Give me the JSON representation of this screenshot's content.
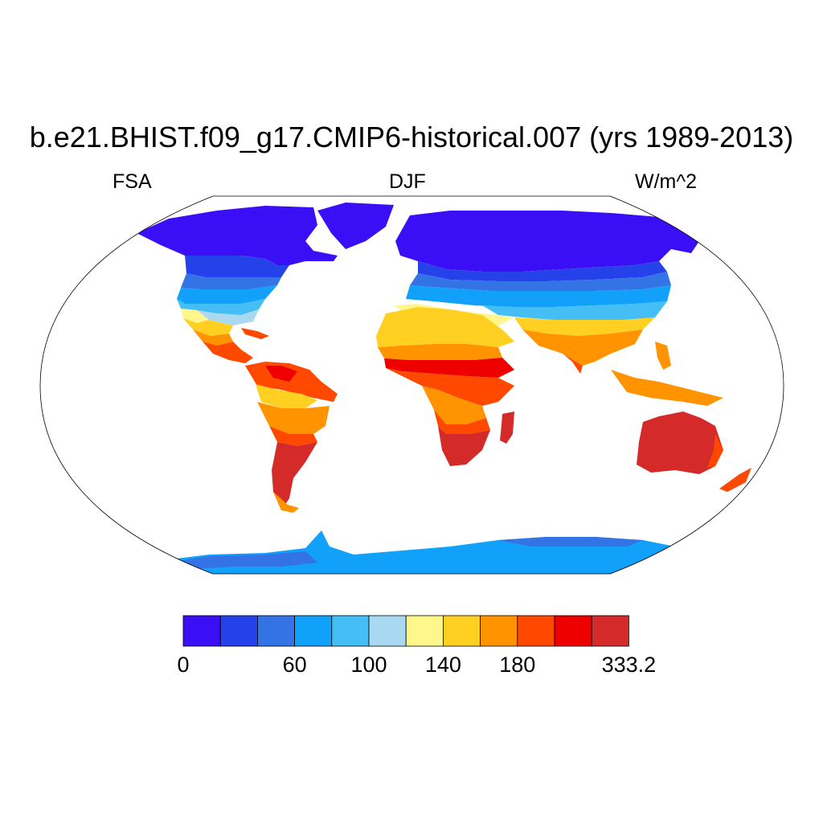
{
  "title": "b.e21.BHIST.f09_g17.CMIP6-historical.007 (yrs 1989-2013)",
  "subtitle_left": "FSA",
  "subtitle_center": "DJF",
  "subtitle_right": "W/m^2",
  "colorbar": {
    "colors": [
      "#3b0ff5",
      "#2542ea",
      "#3473e6",
      "#11a0fa",
      "#44bef4",
      "#a8d9f0",
      "#fff68c",
      "#ffd022",
      "#ff9400",
      "#ff4800",
      "#ee0000",
      "#d42a2a"
    ],
    "labels": [
      "0",
      "60",
      "100",
      "140",
      "180",
      "333.2"
    ]
  },
  "map": {
    "projection": "robinson",
    "ocean_color": "#ffffff",
    "outline_color": "#000000"
  }
}
